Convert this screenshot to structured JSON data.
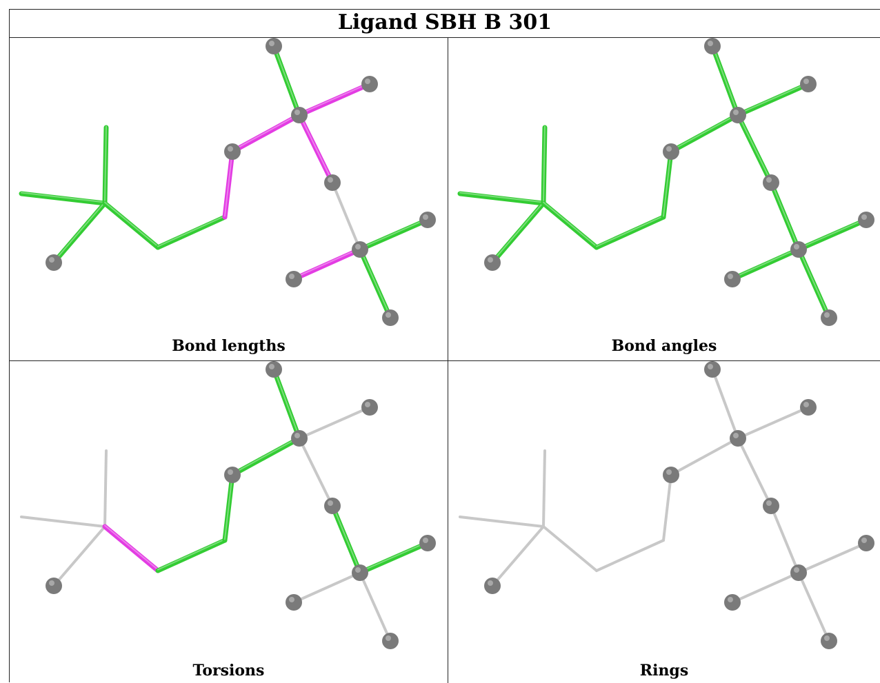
{
  "title": "Ligand SBH B 301",
  "panels": [
    {
      "id": "bond-lengths",
      "caption": "Bond lengths"
    },
    {
      "id": "bond-angles",
      "caption": "Bond angles"
    },
    {
      "id": "torsions",
      "caption": "Torsions"
    },
    {
      "id": "rings",
      "caption": "Rings"
    }
  ],
  "colors": {
    "outlier": "#e33ce3",
    "ok": "#33cc33",
    "neutral": "#c8c8c8",
    "atom": "#7a7a7a"
  },
  "bond_colors": {
    "bond_lengths": [
      "green",
      "green",
      "green",
      "green",
      "green",
      "magenta",
      "magenta",
      "green",
      "magenta",
      "magenta",
      "neutral",
      "green",
      "magenta",
      "green",
      "green"
    ],
    "bond_angles": [
      "green",
      "green",
      "green",
      "green",
      "green",
      "green",
      "green",
      "green",
      "green",
      "green",
      "green",
      "green",
      "green",
      "green",
      "green"
    ],
    "torsions": [
      "neutral",
      "neutral",
      "neutral",
      "magenta",
      "green",
      "green",
      "green",
      "green",
      "neutral",
      "neutral",
      "green",
      "green",
      "neutral",
      "neutral",
      "neutral"
    ],
    "rings": [
      "neutral",
      "neutral",
      "neutral",
      "neutral",
      "neutral",
      "neutral",
      "neutral",
      "neutral",
      "neutral",
      "neutral",
      "neutral",
      "neutral",
      "neutral",
      "neutral",
      "neutral"
    ]
  }
}
